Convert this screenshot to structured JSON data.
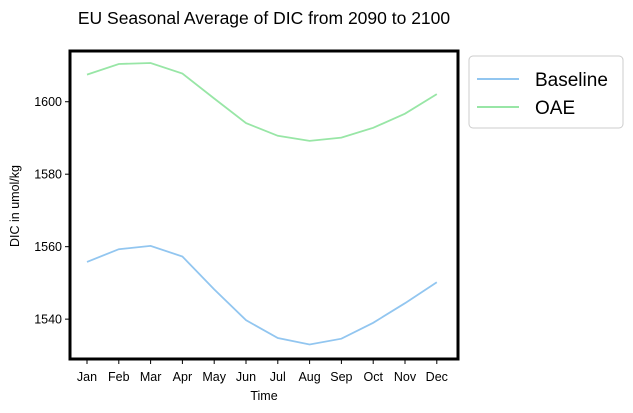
{
  "chart_data": {
    "type": "line",
    "title": "EU Seasonal Average of DIC from 2090 to 2100",
    "xlabel": "Time",
    "ylabel": "DIC in umol/kg",
    "categories": [
      "Jan",
      "Feb",
      "Mar",
      "Apr",
      "May",
      "Jun",
      "Jul",
      "Aug",
      "Sep",
      "Oct",
      "Nov",
      "Dec"
    ],
    "ylim": [
      1529,
      1614
    ],
    "yticks": [
      1540,
      1560,
      1580,
      1600
    ],
    "grid": false,
    "legend_position": "outside-top-right",
    "series": [
      {
        "name": "Baseline",
        "color": "#92c6f0",
        "values": [
          1555.8,
          1559.3,
          1560.2,
          1557.3,
          1548.2,
          1539.7,
          1534.8,
          1533.0,
          1534.6,
          1539.0,
          1544.4,
          1550.2
        ]
      },
      {
        "name": "OAE",
        "color": "#98e6a6",
        "values": [
          1607.5,
          1610.4,
          1610.7,
          1607.8,
          1600.9,
          1594.1,
          1590.6,
          1589.2,
          1590.1,
          1592.8,
          1596.7,
          1602.1
        ]
      }
    ]
  }
}
